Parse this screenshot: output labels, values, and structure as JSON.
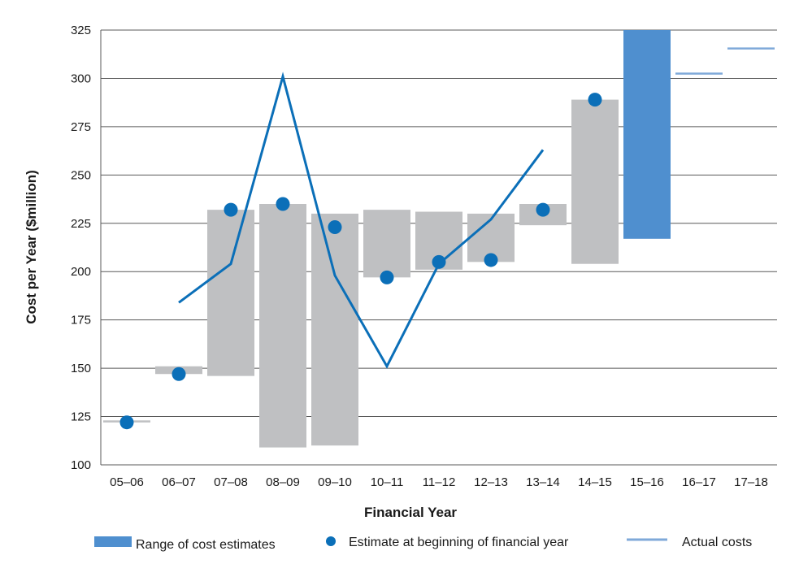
{
  "chart_data": {
    "type": "bar",
    "xlabel": "Financial Year",
    "ylabel": "Cost per Year ($million)",
    "ylim": [
      100,
      325
    ],
    "yticks": [
      100,
      125,
      150,
      175,
      200,
      225,
      250,
      275,
      300,
      325
    ],
    "grid": true,
    "categories": [
      "05–06",
      "06–07",
      "07–08",
      "08–09",
      "09–10",
      "10–11",
      "11–12",
      "12–13",
      "13–14",
      "14–15",
      "15–16",
      "16–17",
      "17–18"
    ],
    "range_of_cost_estimates": [
      {
        "low": 122,
        "high": 123
      },
      {
        "low": 147,
        "high": 151
      },
      {
        "low": 146,
        "high": 232
      },
      {
        "low": 109,
        "high": 235
      },
      {
        "low": 110,
        "high": 230
      },
      {
        "low": 197,
        "high": 232
      },
      {
        "low": 201,
        "high": 231
      },
      {
        "low": 205,
        "high": 230
      },
      {
        "low": 224,
        "high": 235
      },
      {
        "low": 204,
        "high": 289
      },
      {
        "low": 217,
        "high": 325
      },
      {
        "low": 303,
        "high": 303
      },
      {
        "low": 316,
        "high": 316
      }
    ],
    "estimate_at_beginning_of_financial_year": [
      122,
      147,
      232,
      235,
      223,
      197,
      205,
      206,
      232,
      289,
      null,
      null,
      null
    ],
    "actual_costs": [
      null,
      184,
      204,
      301,
      198,
      151,
      204,
      227,
      263,
      null,
      null,
      null,
      null
    ],
    "colors": {
      "range_past": "#bfc0c2",
      "range_current": "#4f8fcf",
      "estimate_marker": "#0b6fb8",
      "actual_line": "#0b6fb8",
      "grid": "#595959",
      "legend_actual": "#7fa9d9"
    },
    "legend": {
      "position": "bottom",
      "items": [
        {
          "label": "Range of cost estimates",
          "swatch": "bar"
        },
        {
          "label": "Estimate at beginning of financial year",
          "swatch": "dot"
        },
        {
          "label": "Actual costs",
          "swatch": "line"
        }
      ]
    }
  }
}
